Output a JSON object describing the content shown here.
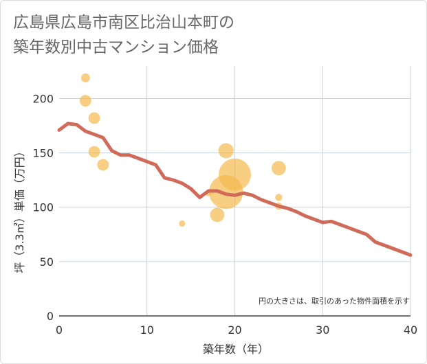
{
  "title_lines": [
    "広島県広島市南区比治山本町の",
    "築年数別中古マンション価格"
  ],
  "chart_data": {
    "type": "scatter",
    "title": "広島県広島市南区比治山本町の築年数別中古マンション価格",
    "xlabel": "築年数（年）",
    "ylabel": "坪（3.3㎡）単価（万円）",
    "xlim": [
      0,
      40
    ],
    "ylim": [
      0,
      230
    ],
    "x_ticks": [
      0,
      10,
      20,
      30,
      40
    ],
    "y_ticks": [
      0,
      50,
      100,
      150,
      200
    ],
    "grid": true,
    "note": "円の大きさは、取引のあった物件面積を示す",
    "colors": {
      "bubble": "#f5b94e",
      "trend": "#d06b5a",
      "grid": "#c5d2dc"
    },
    "bubbles": [
      {
        "x": 3,
        "y": 219,
        "size": 1
      },
      {
        "x": 3,
        "y": 198,
        "size": 1.3
      },
      {
        "x": 4,
        "y": 182,
        "size": 1.3
      },
      {
        "x": 4,
        "y": 151,
        "size": 1.3
      },
      {
        "x": 5,
        "y": 139,
        "size": 1.3
      },
      {
        "x": 14,
        "y": 85,
        "size": 0.7
      },
      {
        "x": 17,
        "y": 113,
        "size": 0.7
      },
      {
        "x": 18,
        "y": 93,
        "size": 1.6
      },
      {
        "x": 19,
        "y": 152,
        "size": 1.7
      },
      {
        "x": 19,
        "y": 114,
        "size": 3.8
      },
      {
        "x": 20,
        "y": 130,
        "size": 3.6
      },
      {
        "x": 25,
        "y": 136,
        "size": 1.6
      },
      {
        "x": 25,
        "y": 109,
        "size": 0.8
      },
      {
        "x": 25,
        "y": 101,
        "size": 0.8
      }
    ],
    "trend": {
      "x": [
        0,
        1,
        2,
        3,
        4,
        5,
        6,
        7,
        8,
        9,
        10,
        11,
        12,
        13,
        14,
        15,
        16,
        17,
        18,
        19,
        20,
        21,
        22,
        23,
        24,
        25,
        26,
        27,
        28,
        29,
        30,
        31,
        32,
        33,
        34,
        35,
        36,
        37,
        38,
        39,
        40
      ],
      "y": [
        171,
        177,
        176,
        170,
        167,
        164,
        152,
        148,
        148,
        145,
        142,
        139,
        127,
        125,
        122,
        117,
        109,
        115,
        115,
        112,
        111,
        113,
        111,
        107,
        104,
        101,
        99,
        96,
        92,
        89,
        86,
        87,
        84,
        81,
        78,
        75,
        68,
        65,
        62,
        59,
        56
      ]
    }
  }
}
